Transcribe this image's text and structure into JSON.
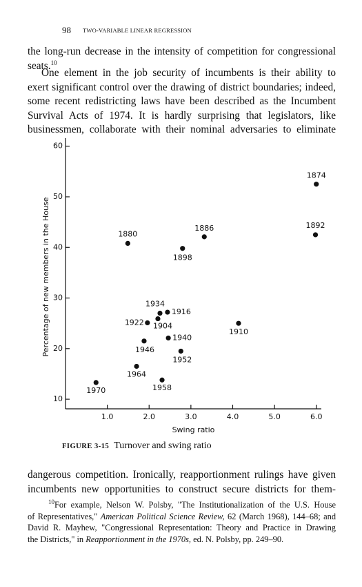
{
  "header": {
    "page_number": "98",
    "running_title": "TWO-VARIABLE LINEAR REGRESSION"
  },
  "paragraphs": [
    {
      "lines": [
        "the long-run decrease in the intensity of competition for congressional",
        "seats."
      ],
      "note": "10"
    },
    {
      "lines": [
        "One element in the job security of incumbents is their ability to",
        "exert significant control over the drawing of district boundaries; indeed,",
        "some recent redistricting laws have been described as the Incumbent",
        "Survival Acts of 1974. It is hardly surprising that legislators, like",
        "businessmen, collaborate with their nominal adversaries to eliminate"
      ]
    },
    {
      "lines": [
        "dangerous competition. Ironically, reapportionment rulings have given",
        "incumbents new opportunities to construct secure districts for them-"
      ]
    }
  ],
  "chart_data": {
    "type": "scatter",
    "xlabel": "Swing ratio",
    "ylabel": "Percentage of new members in the House",
    "x": [
      6.0,
      5.98,
      1.49,
      3.32,
      2.8,
      2.26,
      2.44,
      2.21,
      1.96,
      4.14,
      2.46,
      1.88,
      2.76,
      1.7,
      2.31,
      0.73
    ],
    "values": [
      52.5,
      42.5,
      40.8,
      42.1,
      39.8,
      27.0,
      27.2,
      25.9,
      25.1,
      25.0,
      22.1,
      21.5,
      19.5,
      16.5,
      13.8,
      13.3
    ],
    "point_labels": [
      "1874",
      "1892",
      "1880",
      "1886",
      "1898",
      "1934",
      "1916",
      "1904",
      "1922",
      "1910",
      "1940",
      "1946",
      "1952",
      "1964",
      "1958",
      "1970"
    ],
    "color": "#111111",
    "xlim": [
      0,
      6.12
    ],
    "ylim": [
      8.1,
      61.6
    ],
    "xticks": [
      {
        "value": 1,
        "label": "1.0"
      },
      {
        "value": 2,
        "label": "2.0"
      },
      {
        "value": 3,
        "label": "3.0"
      },
      {
        "value": 4,
        "label": "4.0"
      },
      {
        "value": 5,
        "label": "5.0"
      },
      {
        "value": 6,
        "label": "6.0"
      }
    ],
    "yticks": [
      10,
      20,
      30,
      40,
      50,
      60
    ],
    "grid": false
  },
  "caption": {
    "label": "FIGURE 3-15",
    "text": "Turnover and swing ratio"
  },
  "footnote": {
    "marker": "10",
    "lines": [
      [
        "For example, Nelson W. Polsby, \"The Institutionalization of the U.S. House"
      ],
      [
        "of Representatives,\" ",
        "American Political Science Review,",
        " 62 (March 1968), 144–68; and"
      ],
      [
        "David R. Mayhew, \"Congressional Representation: Theory and Practice in Drawing"
      ],
      [
        "the Districts,\" in ",
        "Reapportionment in the 1970s,",
        " ed. N. Polsby, pp. 249–90."
      ]
    ]
  }
}
